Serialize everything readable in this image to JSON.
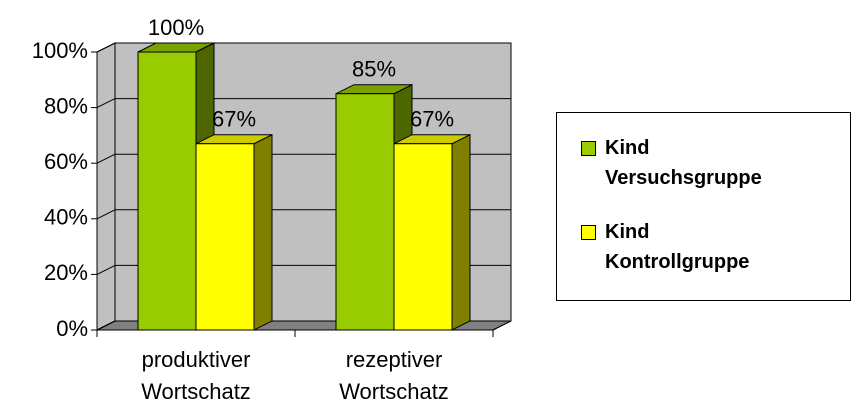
{
  "chart_data": {
    "type": "bar3d",
    "categories": [
      "produktiver Wortschatz",
      "rezeptiver Wortschatz"
    ],
    "series": [
      {
        "name": "Kind Versuchsgruppe",
        "color": "#99cc00",
        "values": [
          100,
          85
        ],
        "value_labels": [
          "100%",
          "85%"
        ]
      },
      {
        "name": "Kind Kontrollgruppe",
        "color": "#ffff00",
        "values": [
          67,
          67
        ],
        "value_labels": [
          "67%",
          "67%"
        ]
      }
    ],
    "ylim": [
      0,
      100
    ],
    "yticks": [
      {
        "value": 0,
        "label": "0%"
      },
      {
        "value": 20,
        "label": "20%"
      },
      {
        "value": 40,
        "label": "40%"
      },
      {
        "value": 60,
        "label": "60%"
      },
      {
        "value": 80,
        "label": "80%"
      },
      {
        "value": 100,
        "label": "100%"
      }
    ],
    "grid": true,
    "legend": "right"
  }
}
